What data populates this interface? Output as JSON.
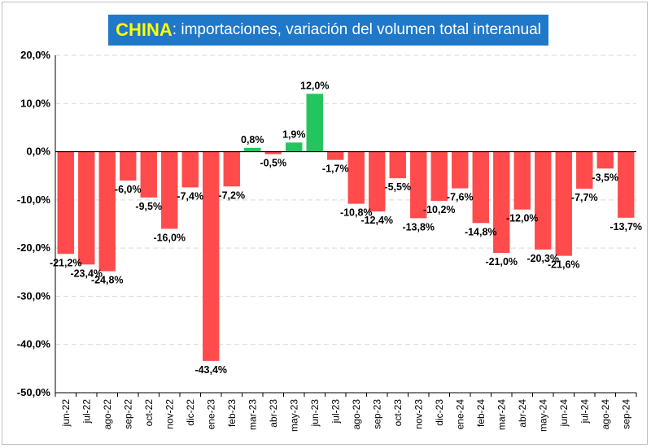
{
  "title": {
    "main": "CHINA",
    "sub": ": importaciones, variación del volumen total interanual"
  },
  "colors": {
    "negative": "#ff4b4b",
    "positive": "#22c55e",
    "title_bg": "#1f78c8",
    "title_main": "#ffff00"
  },
  "chart_data": {
    "type": "bar",
    "categories": [
      "jun-22",
      "jul-22",
      "ago-22",
      "sep-22",
      "oct-22",
      "nov-22",
      "dic-22",
      "ene-23",
      "feb-23",
      "mar-23",
      "abr-23",
      "may-23",
      "jun-23",
      "jul-23",
      "ago-23",
      "sep-23",
      "oct-23",
      "nov-23",
      "dic-23",
      "ene-24",
      "feb-24",
      "mar-24",
      "abr-24",
      "may-24",
      "jun-24",
      "jul-24",
      "ago-24",
      "sep-24"
    ],
    "values": [
      -21.2,
      -23.4,
      -24.8,
      -6.0,
      -9.5,
      -16.0,
      -7.4,
      -43.4,
      -7.2,
      0.8,
      -0.5,
      1.9,
      12.0,
      -1.7,
      -10.8,
      -12.4,
      -5.5,
      -13.8,
      -10.2,
      -7.6,
      -14.8,
      -21.0,
      -12.0,
      -20.3,
      -21.6,
      -7.7,
      -3.5,
      -13.7
    ],
    "labels": [
      "-21,2%",
      "-23,4%",
      "-24,8%",
      "-6,0%",
      "-9,5%",
      "-16,0%",
      "-7,4%",
      "-43,4%",
      "-7,2%",
      "0,8%",
      "-0,5%",
      "1,9%",
      "12,0%",
      "-1,7%",
      "-10,8%",
      "-12,4%",
      "-5,5%",
      "-13,8%",
      "-10,2%",
      "-7,6%",
      "-14,8%",
      "-21,0%",
      "-12,0%",
      "-20,3%",
      "-21,6%",
      "-7,7%",
      "-3,5%",
      "-13,7%"
    ],
    "yticks": [
      20,
      10,
      0,
      -10,
      -20,
      -30,
      -40,
      -50
    ],
    "ytick_labels": [
      "20,0%",
      "10,0%",
      "0,0%",
      "-10,0%",
      "-20,0%",
      "-30,0%",
      "-40,0%",
      "-50,0%"
    ],
    "ylim": [
      -50,
      20
    ],
    "grid": true,
    "xlabel": "",
    "ylabel": ""
  }
}
